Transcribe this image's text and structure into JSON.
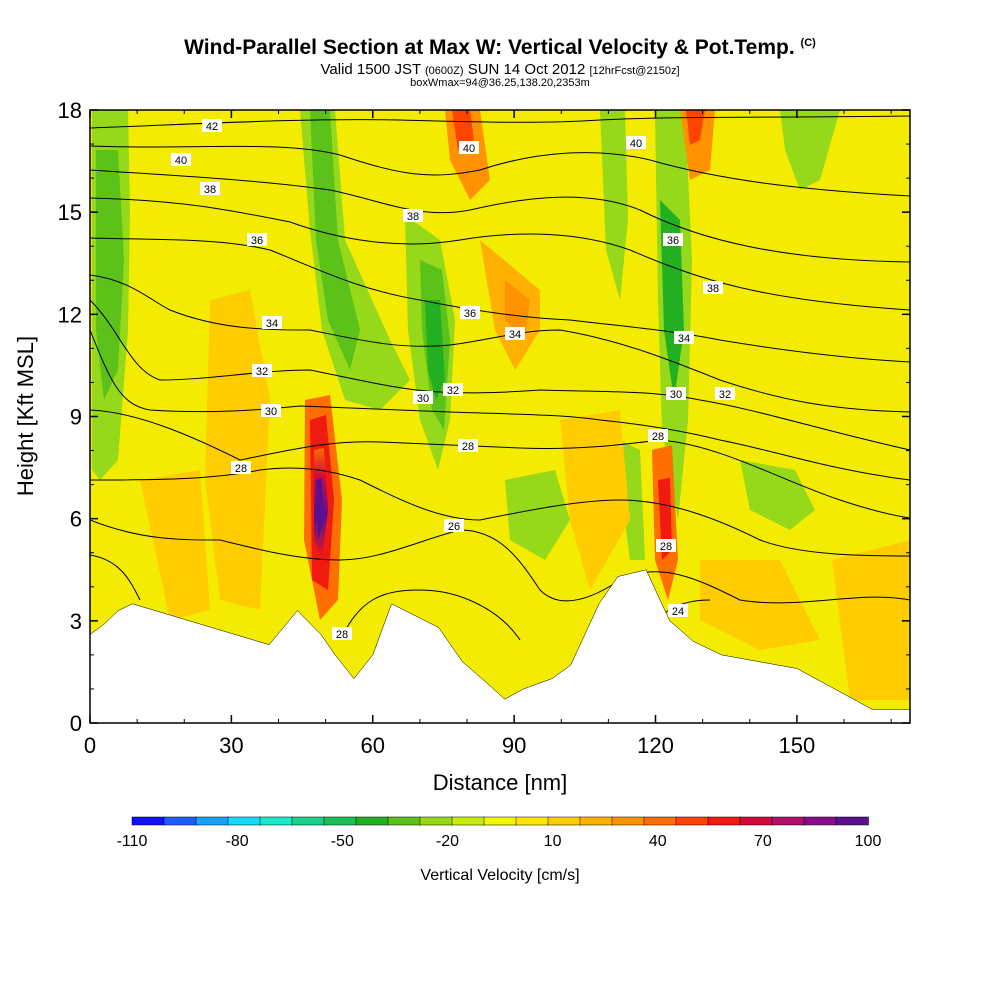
{
  "chart_data": {
    "type": "heatmap",
    "title": "Wind-Parallel Section at Max W: Vertical Velocity & Pot.Temp.",
    "title_mark": "(C)",
    "subtitle_parts": [
      "Valid 1500 JST",
      "(0600Z)",
      "SUN 14 Oct 2012",
      "[12hrFcst@2150z]"
    ],
    "subtitle2": "boxWmax=94@36.25,138.20,2353m",
    "xlabel": "Distance [nm]",
    "ylabel": "Height [Kft MSL]",
    "xlim": [
      0,
      174
    ],
    "ylim": [
      0,
      18
    ],
    "x_ticks": [
      "0",
      "30",
      "60",
      "90",
      "120",
      "150"
    ],
    "x_tick_values": [
      0,
      30,
      60,
      90,
      120,
      150
    ],
    "y_ticks": [
      "0",
      "3",
      "6",
      "9",
      "12",
      "15",
      "18"
    ],
    "y_tick_values": [
      0,
      3,
      6,
      9,
      12,
      15,
      18
    ],
    "colorbar": {
      "label": "Vertical Velocity [cm/s]",
      "tick_labels": [
        "-110",
        "-80",
        "-50",
        "-20",
        "10",
        "40",
        "70",
        "100"
      ],
      "colors": [
        "#1010ff",
        "#1f5cff",
        "#1aa0ff",
        "#1ad8ff",
        "#20e8c8",
        "#1cd08c",
        "#1cbf56",
        "#22b022",
        "#5cc21a",
        "#96d81a",
        "#c8ea10",
        "#f0f800",
        "#ffe400",
        "#ffcc00",
        "#ffb000",
        "#ff9200",
        "#ff6e00",
        "#ff4400",
        "#f01a10",
        "#d00a3a",
        "#b0106a",
        "#8a0a8a",
        "#5a1090"
      ]
    },
    "contour_labels": [
      "42",
      "40",
      "38",
      "36",
      "34",
      "32",
      "30",
      "28",
      "40",
      "38",
      "36",
      "34",
      "32",
      "30",
      "28",
      "26",
      "28",
      "40",
      "36",
      "38",
      "34",
      "30",
      "32",
      "28",
      "28",
      "24"
    ],
    "terrain_km": [
      [
        0,
        2.6
      ],
      [
        3,
        2.9
      ],
      [
        6,
        3.3
      ],
      [
        9,
        3.5
      ],
      [
        38,
        2.3
      ],
      [
        44,
        3.3
      ],
      [
        49,
        2.6
      ],
      [
        52,
        2.0
      ],
      [
        56,
        1.3
      ],
      [
        60,
        2.0
      ],
      [
        64,
        3.5
      ],
      [
        74,
        2.8
      ],
      [
        79,
        1.8
      ],
      [
        84,
        1.2
      ],
      [
        88,
        0.7
      ],
      [
        92,
        1.0
      ],
      [
        98,
        1.3
      ],
      [
        102,
        1.7
      ],
      [
        108,
        3.5
      ],
      [
        112,
        4.3
      ],
      [
        118,
        4.5
      ],
      [
        123,
        3.0
      ],
      [
        128,
        2.4
      ],
      [
        134,
        2.0
      ],
      [
        150,
        1.6
      ],
      [
        158,
        1.0
      ],
      [
        166,
        0.4
      ],
      [
        174,
        0.4
      ]
    ]
  }
}
